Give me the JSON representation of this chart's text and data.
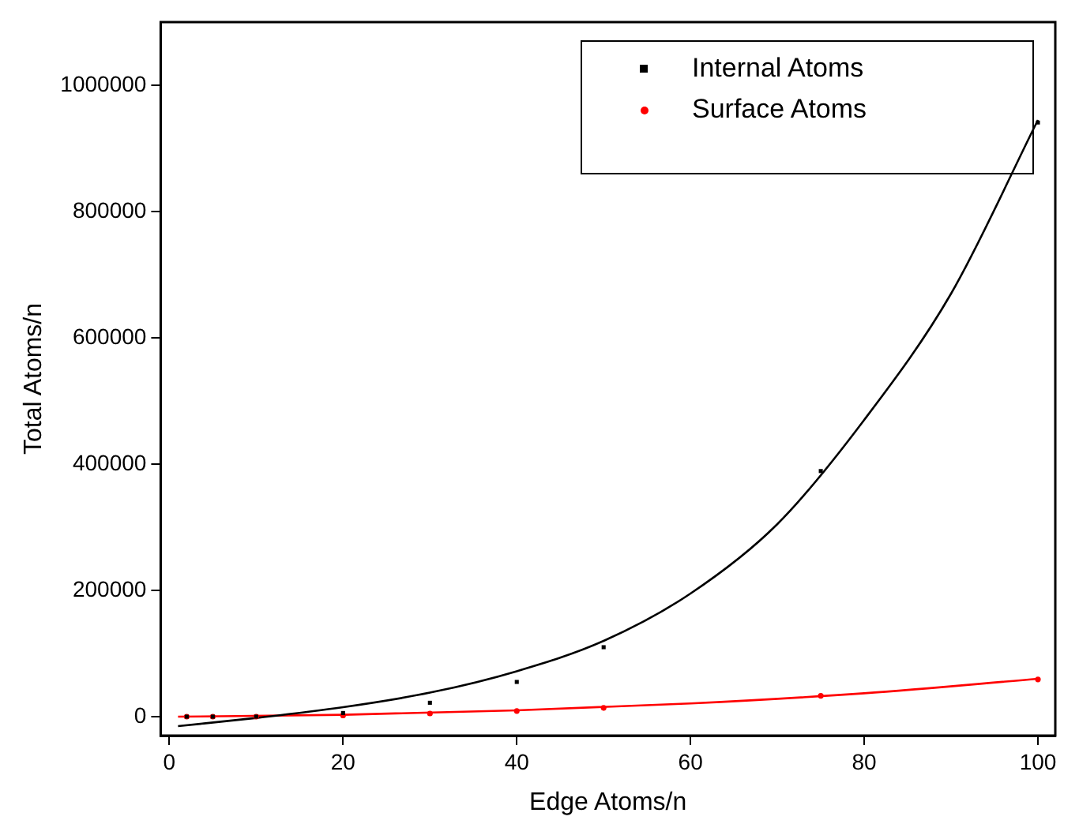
{
  "chart_data": {
    "type": "scatter",
    "xlabel": "Edge Atoms/n",
    "ylabel": "Total Atoms/n",
    "xlim": [
      -1,
      102
    ],
    "ylim": [
      -30000,
      1100000
    ],
    "xticks": [
      0,
      20,
      40,
      60,
      80,
      100
    ],
    "yticks": [
      0,
      200000,
      400000,
      600000,
      800000,
      1000000
    ],
    "grid": false,
    "legend": "top right",
    "series": [
      {
        "name": "Internal Atoms",
        "color": "#000000",
        "marker": "square",
        "x": [
          2,
          5,
          10,
          20,
          30,
          40,
          50,
          75,
          100
        ],
        "values": [
          0,
          0,
          0,
          5800,
          22000,
          55000,
          110000,
          389000,
          941000
        ]
      },
      {
        "name": "Surface Atoms",
        "color": "#ff0000",
        "marker": "circle",
        "x": [
          2,
          5,
          10,
          20,
          30,
          40,
          50,
          75,
          100
        ],
        "values": [
          0,
          0,
          0,
          2000,
          5000,
          9000,
          14000,
          33000,
          59000
        ]
      },
      {
        "type": "line",
        "color": "#000000",
        "marker": "none",
        "x": [
          1,
          10,
          20,
          30,
          40,
          50,
          60,
          70,
          80,
          90,
          100
        ],
        "values": [
          -15000,
          -2000,
          15000,
          38000,
          72000,
          120000,
          195000,
          305000,
          470000,
          670000,
          945000
        ]
      },
      {
        "type": "line",
        "color": "#ff0000",
        "marker": "none",
        "x": [
          1,
          20,
          40,
          60,
          80,
          100
        ],
        "values": [
          0,
          3000,
          10000,
          21000,
          37000,
          60000
        ]
      }
    ]
  }
}
